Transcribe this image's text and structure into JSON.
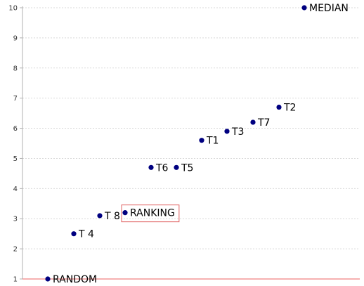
{
  "chart_data": {
    "type": "scatter",
    "title": "",
    "xlabel": "",
    "ylabel": "",
    "ylim": [
      1,
      10
    ],
    "y_ticks": [
      "1",
      "2",
      "3",
      "4",
      "5",
      "6",
      "7",
      "8",
      "9",
      "10"
    ],
    "grid": true,
    "legend": "none",
    "point_color": "#000080",
    "highlight_color": "#e06060",
    "baseline_color": "#f08080",
    "points": [
      {
        "x": 1,
        "y": 1.0,
        "label": "RANDOM"
      },
      {
        "x": 2,
        "y": 2.5,
        "label": "T 4"
      },
      {
        "x": 3,
        "y": 3.1,
        "label": "T 8"
      },
      {
        "x": 4,
        "y": 3.2,
        "label": "RANKING",
        "highlighted": true
      },
      {
        "x": 5,
        "y": 4.7,
        "label": "T6"
      },
      {
        "x": 6,
        "y": 4.7,
        "label": "T5"
      },
      {
        "x": 7,
        "y": 5.6,
        "label": "T1"
      },
      {
        "x": 8,
        "y": 5.9,
        "label": "T3"
      },
      {
        "x": 9,
        "y": 6.2,
        "label": "T7"
      },
      {
        "x": 10,
        "y": 6.7,
        "label": "T2"
      },
      {
        "x": 11,
        "y": 10.0,
        "label": "MEDIAN"
      }
    ]
  }
}
